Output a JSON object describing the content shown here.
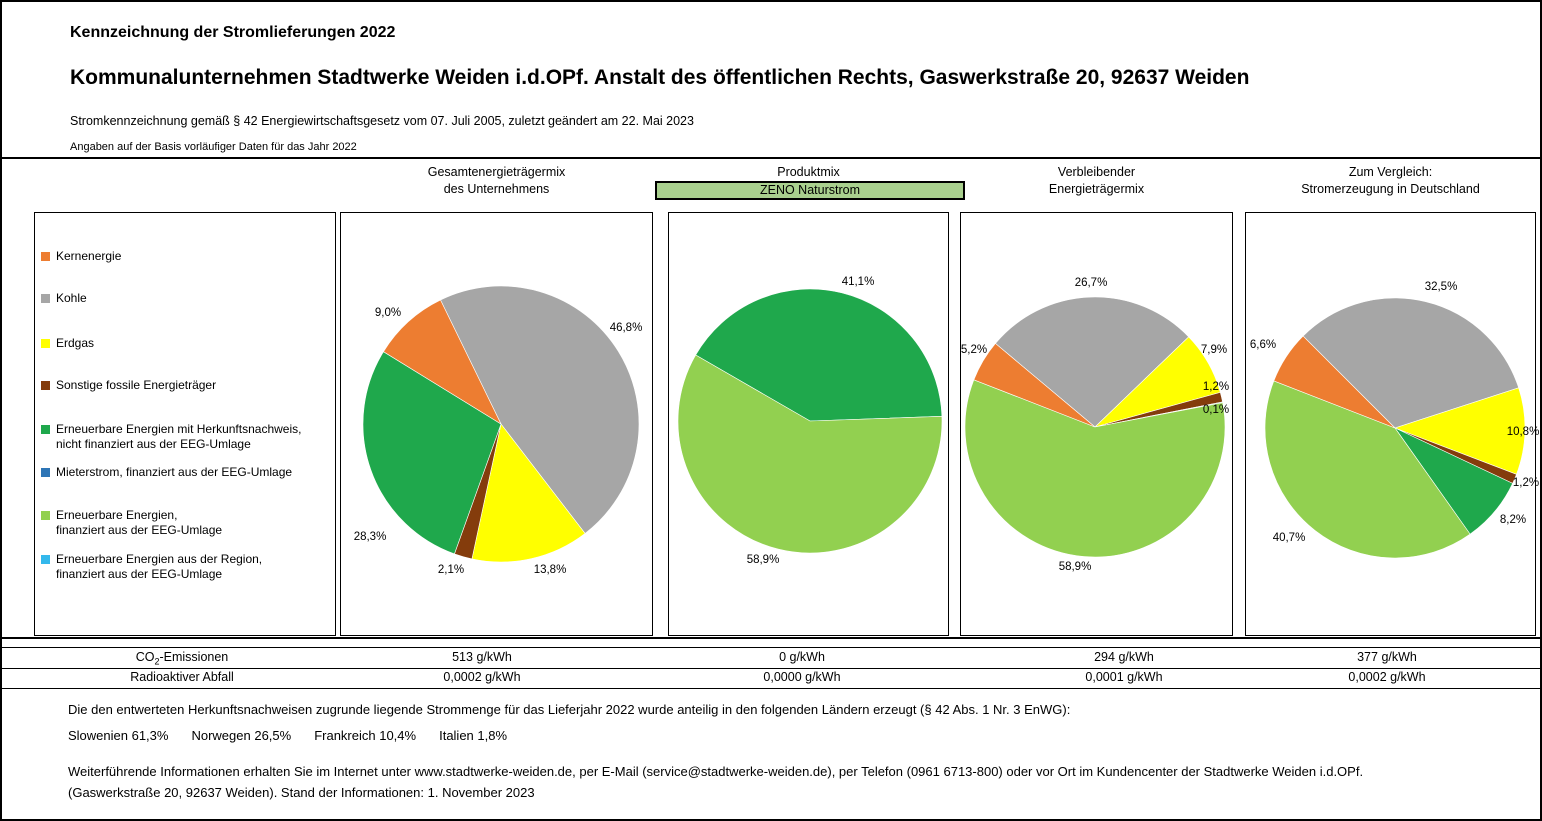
{
  "header": {
    "title_line1": "Kennzeichnung der Stromlieferungen 2022",
    "title_line2": "Kommunalunternehmen Stadtwerke Weiden i.d.OPf. Anstalt des öffentlichen Rechts, Gaswerkstraße 20, 92637 Weiden",
    "subtitle": "Stromkennzeichnung gemäß § 42 Energiewirtschaftsgesetz vom 07. Juli 2005, zuletzt geändert am 22. Mai 2023",
    "note": "Angaben auf der Basis vorläufiger Daten für das Jahr 2022"
  },
  "colors": {
    "kernenergie": "#ED7D31",
    "kohle": "#A6A6A6",
    "erdgas": "#FFFF00",
    "sonstige": "#843C0C",
    "ern_hkn": "#1FA84C",
    "mieterstrom": "#2E75B6",
    "ern_eeg": "#92D050",
    "ern_region": "#33B8EC",
    "product_box_fill": "#A9D08E"
  },
  "legend": {
    "items": [
      {
        "key": "kernenergie",
        "lines": [
          "Kernenergie"
        ]
      },
      {
        "key": "kohle",
        "lines": [
          "Kohle"
        ]
      },
      {
        "key": "erdgas",
        "lines": [
          "Erdgas"
        ]
      },
      {
        "key": "sonstige",
        "lines": [
          "Sonstige fossile Energieträger"
        ]
      },
      {
        "key": "ern_hkn",
        "lines": [
          "Erneuerbare Energien mit Herkunftsnachweis,",
          "nicht finanziert aus der EEG-Umlage"
        ]
      },
      {
        "key": "mieterstrom",
        "lines": [
          "Mieterstrom, finanziert aus der EEG-Umlage"
        ]
      },
      {
        "key": "ern_eeg",
        "lines": [
          "Erneuerbare Energien,",
          "finanziert aus der EEG-Umlage"
        ]
      },
      {
        "key": "ern_region",
        "lines": [
          "Erneuerbare Energien aus der Region,",
          "finanziert aus der EEG-Umlage"
        ]
      }
    ]
  },
  "columns": [
    {
      "line1": "Gesamtenergieträgermix",
      "line2": "des Unternehmens"
    },
    {
      "line1": "Produktmix",
      "product": "ZENO Naturstrom"
    },
    {
      "line1": "Verbleibender",
      "line2": "Energieträgermix"
    },
    {
      "line1": "Zum Vergleich:",
      "line2": "Stromerzeugung in Deutschland"
    }
  ],
  "chart_data": [
    {
      "type": "pie",
      "title": "Gesamtenergieträgermix des Unternehmens",
      "legend_position": "left",
      "start_angle": -26,
      "center": [
        160,
        211
      ],
      "radius": 138,
      "slices": [
        {
          "name": "kohle",
          "label": "Kohle",
          "value": 46.8,
          "pct": "46,8%",
          "label_xy": [
            285,
            115
          ]
        },
        {
          "name": "erdgas",
          "label": "Erdgas",
          "value": 13.8,
          "pct": "13,8%",
          "label_xy": [
            209,
            357
          ]
        },
        {
          "name": "sonstige",
          "label": "Sonstige fossile Energieträger",
          "value": 2.1,
          "pct": "2,1%",
          "label_xy": [
            110,
            357
          ]
        },
        {
          "name": "ern_hkn",
          "label": "Erneuerbare Energien mit Herkunftsnachweis, nicht finanziert aus der EEG-Umlage",
          "value": 28.3,
          "pct": "28,3%",
          "label_xy": [
            29,
            324
          ]
        },
        {
          "name": "kernenergie",
          "label": "Kernenergie",
          "value": 9.0,
          "pct": "9,0%",
          "label_xy": [
            47,
            100
          ]
        }
      ]
    },
    {
      "type": "pie",
      "title": "Produktmix ZENO Naturstrom",
      "start_angle": -60,
      "center": [
        141,
        208
      ],
      "radius": 132,
      "slices": [
        {
          "name": "ern_hkn",
          "label": "Erneuerbare Energien mit Herkunftsnachweis, nicht finanziert aus der EEG-Umlage",
          "value": 41.1,
          "pct": "41,1%",
          "label_xy": [
            189,
            69
          ]
        },
        {
          "name": "ern_eeg",
          "label": "Erneuerbare Energien, finanziert aus der EEG-Umlage",
          "value": 58.9,
          "pct": "58,9%",
          "label_xy": [
            94,
            347
          ]
        }
      ]
    },
    {
      "type": "pie",
      "title": "Verbleibender Energieträgermix",
      "start_angle": -50,
      "center": [
        134,
        214
      ],
      "radius": 130,
      "slices": [
        {
          "name": "kohle",
          "label": "Kohle",
          "value": 26.7,
          "pct": "26,7%",
          "label_xy": [
            130,
            70
          ]
        },
        {
          "name": "erdgas",
          "label": "Erdgas",
          "value": 7.9,
          "pct": "7,9%",
          "label_xy": [
            253,
            137
          ]
        },
        {
          "name": "sonstige",
          "label": "Sonstige fossile Energieträger",
          "value": 1.2,
          "pct": "1,2%",
          "label_xy": [
            255,
            174
          ]
        },
        {
          "name": "ern_hkn",
          "label": "Erneuerbare Energien mit Herkunftsnachweis, nicht finanziert aus der EEG-Umlage",
          "value": 0.1,
          "pct": "0,1%",
          "label_xy": [
            255,
            197
          ]
        },
        {
          "name": "ern_eeg",
          "label": "Erneuerbare Energien, finanziert aus der EEG-Umlage",
          "value": 58.9,
          "pct": "58,9%",
          "label_xy": [
            114,
            354
          ]
        },
        {
          "name": "kernenergie",
          "label": "Kernenergie",
          "value": 5.2,
          "pct": "5,2%",
          "label_xy": [
            13,
            137
          ]
        }
      ]
    },
    {
      "type": "pie",
      "title": "Zum Vergleich: Stromerzeugung in Deutschland",
      "start_angle": -45,
      "center": [
        149,
        215
      ],
      "radius": 130,
      "slices": [
        {
          "name": "kohle",
          "label": "Kohle",
          "value": 32.5,
          "pct": "32,5%",
          "label_xy": [
            195,
            74
          ]
        },
        {
          "name": "erdgas",
          "label": "Erdgas",
          "value": 10.8,
          "pct": "10,8%",
          "label_xy": [
            277,
            219
          ]
        },
        {
          "name": "sonstige",
          "label": "Sonstige fossile Energieträger",
          "value": 1.2,
          "pct": "1,2%",
          "label_xy": [
            280,
            270
          ]
        },
        {
          "name": "ern_hkn",
          "label": "Erneuerbare Energien mit Herkunftsnachweis, nicht finanziert aus der EEG-Umlage",
          "value": 8.2,
          "pct": "8,2%",
          "label_xy": [
            267,
            307
          ]
        },
        {
          "name": "ern_eeg",
          "label": "Erneuerbare Energien, finanziert aus der EEG-Umlage",
          "value": 40.7,
          "pct": "40,7%",
          "label_xy": [
            43,
            325
          ]
        },
        {
          "name": "kernenergie",
          "label": "Kernenergie",
          "value": 6.6,
          "pct": "6,6%",
          "label_xy": [
            17,
            132
          ]
        }
      ]
    }
  ],
  "table": {
    "rows": [
      {
        "label_prefix": "CO",
        "label_sub": "2",
        "label_suffix": "-Emissionen",
        "values": [
          "513 g/kWh",
          "0 g/kWh",
          "294 g/kWh",
          "377 g/kWh"
        ]
      },
      {
        "label": "Radioaktiver Abfall",
        "values": [
          "0,0002 g/kWh",
          "0,0000 g/kWh",
          "0,0001 g/kWh",
          "0,0002 g/kWh"
        ]
      }
    ]
  },
  "footer": {
    "countries_intro": "Die den entwerteten Herkunftsnachweisen zugrunde liegende Strommenge für das Lieferjahr 2022 wurde anteilig in den folgenden Ländern erzeugt (§ 42 Abs. 1 Nr. 3 EnWG):",
    "countries": [
      {
        "name": "Slowenien",
        "share": "61,3%"
      },
      {
        "name": "Norwegen",
        "share": "26,5%"
      },
      {
        "name": "Frankreich",
        "share": "10,4%"
      },
      {
        "name": "Italien",
        "share": "1,8%"
      }
    ],
    "info_line1": "Weiterführende Informationen erhalten Sie im Internet unter www.stadtwerke-weiden.de, per E-Mail (service@stadtwerke-weiden.de), per Telefon (0961 6713-800) oder vor Ort im Kundencenter der Stadtwerke Weiden i.d.OPf.",
    "info_line2": "(Gaswerkstraße 20, 92637 Weiden). Stand der Informationen: 1. November 2023"
  }
}
